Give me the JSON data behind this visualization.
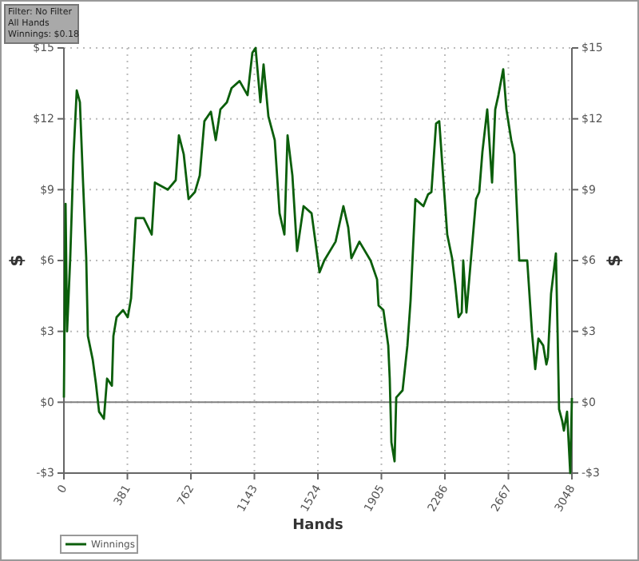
{
  "chart_data": {
    "type": "line",
    "xlabel": "Hands",
    "ylabel": "$",
    "y2label": "$",
    "annotations": [
      "Filter: No Filter",
      "All Hands",
      "Winnings: $0.18"
    ],
    "x": [
      0,
      10,
      19,
      38,
      58,
      77,
      96,
      115,
      134,
      144,
      173,
      192,
      211,
      240,
      259,
      288,
      297,
      316,
      355,
      383,
      403,
      431,
      479,
      527,
      546,
      623,
      671,
      690,
      719,
      748,
      786,
      815,
      843,
      882,
      911,
      939,
      978,
      1006,
      1054,
      1102,
      1131,
      1150,
      1179,
      1198,
      1227,
      1265,
      1294,
      1323,
      1342,
      1371,
      1399,
      1438,
      1486,
      1534,
      1562,
      1630,
      1677,
      1706,
      1725,
      1773,
      1840,
      1879,
      1888,
      1917,
      1946,
      1955,
      1965,
      1984,
      1994,
      2032,
      2061,
      2080,
      2090,
      2109,
      2157,
      2185,
      2205,
      2233,
      2252,
      2272,
      2300,
      2329,
      2348,
      2368,
      2387,
      2396,
      2415,
      2473,
      2492,
      2511,
      2540,
      2569,
      2588,
      2607,
      2636,
      2655,
      2684,
      2703,
      2732,
      2780,
      2808,
      2828,
      2847,
      2876,
      2895,
      2904,
      2923,
      2952,
      2962,
      2971,
      2990,
      3000,
      3019,
      3038,
      3048
    ],
    "series": [
      {
        "name": "Winnings",
        "color": "#0b5e0b",
        "values": [
          0.2,
          8.4,
          3.0,
          6.1,
          10.5,
          13.2,
          12.7,
          9.3,
          6.1,
          2.8,
          1.8,
          0.8,
          -0.4,
          -0.7,
          1.0,
          0.7,
          2.8,
          3.6,
          3.9,
          3.6,
          4.4,
          7.8,
          7.8,
          7.1,
          9.3,
          9.0,
          9.4,
          11.3,
          10.5,
          8.6,
          8.9,
          9.6,
          11.9,
          12.3,
          11.1,
          12.4,
          12.7,
          13.3,
          13.6,
          13.0,
          14.8,
          15.0,
          12.7,
          14.3,
          12.1,
          11.1,
          8.0,
          7.1,
          11.3,
          9.6,
          6.4,
          8.3,
          8.0,
          5.5,
          6.0,
          6.8,
          8.3,
          7.4,
          6.1,
          6.8,
          6.0,
          5.2,
          4.1,
          3.9,
          2.4,
          1.0,
          -1.7,
          -2.5,
          0.2,
          0.5,
          2.4,
          4.3,
          5.8,
          8.6,
          8.3,
          8.8,
          8.9,
          11.8,
          11.9,
          9.9,
          7.1,
          6.1,
          5.0,
          3.6,
          3.8,
          6.0,
          3.8,
          8.6,
          8.9,
          10.6,
          12.4,
          9.3,
          12.4,
          13.0,
          14.1,
          12.4,
          11.1,
          10.5,
          6.0,
          6.0,
          3.0,
          1.4,
          2.7,
          2.4,
          1.6,
          1.9,
          4.6,
          6.3,
          3.0,
          -0.3,
          -0.8,
          -1.2,
          -0.4,
          -3.0,
          0.18
        ]
      }
    ],
    "xlim": [
      0,
      3048
    ],
    "xticks": [
      0,
      381,
      762,
      1143,
      1524,
      1905,
      2286,
      2667,
      3048
    ],
    "ylim": [
      -3,
      15
    ],
    "yticks": [
      {
        "value": -3,
        "label": "-$3"
      },
      {
        "value": 0,
        "label": "$0"
      },
      {
        "value": 3,
        "label": "$3"
      },
      {
        "value": 6,
        "label": "$6"
      },
      {
        "value": 9,
        "label": "$9"
      },
      {
        "value": 12,
        "label": "$12"
      },
      {
        "value": 15,
        "label": "$15"
      }
    ],
    "y2lim": [
      -3,
      15
    ],
    "y2ticks": [
      {
        "value": -3,
        "label": "-$3"
      },
      {
        "value": 0,
        "label": "$0"
      },
      {
        "value": 3,
        "label": "$3"
      },
      {
        "value": 6,
        "label": "$6"
      },
      {
        "value": 9,
        "label": "$9"
      },
      {
        "value": 12,
        "label": "$12"
      },
      {
        "value": 15,
        "label": "$15"
      }
    ],
    "ref_lines": [
      {
        "axis": "y",
        "value": 0,
        "color": "#808080"
      }
    ],
    "grid": true,
    "legend": "bottom left",
    "line_style": "solid",
    "marker": "none"
  }
}
